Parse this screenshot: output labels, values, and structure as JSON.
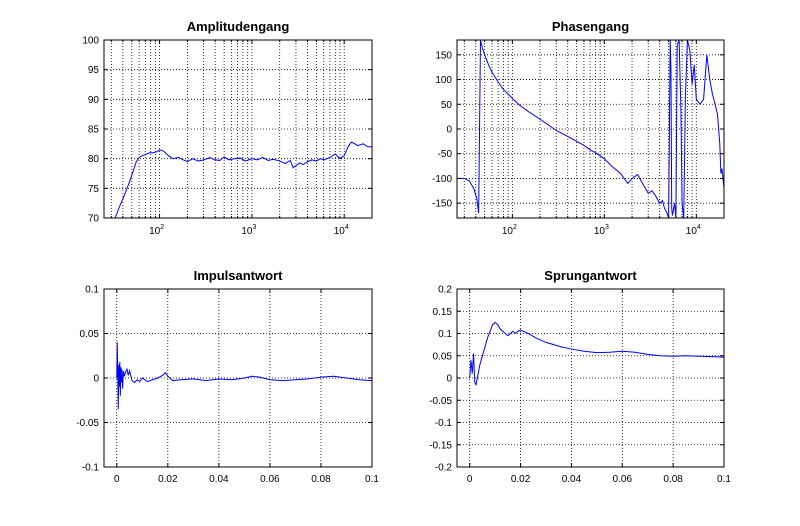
{
  "chart_data": [
    {
      "id": "amp",
      "type": "line",
      "title": "Amplitudengang",
      "xscale": "log",
      "xlim": [
        25,
        20000
      ],
      "ylim": [
        70,
        100
      ],
      "xticks": [
        {
          "value": 100,
          "base": "10",
          "exp": "2"
        },
        {
          "value": 1000,
          "base": "10",
          "exp": "3"
        },
        {
          "value": 10000,
          "base": "10",
          "exp": "4"
        }
      ],
      "yticks": [
        "70",
        "75",
        "80",
        "85",
        "90",
        "95",
        "100"
      ],
      "grid": true,
      "series": [
        {
          "color": "#0000ff",
          "x": [
            33,
            37,
            42,
            47,
            52,
            56,
            60,
            65,
            70,
            78,
            85,
            95,
            100,
            110,
            125,
            140,
            160,
            180,
            200,
            230,
            260,
            300,
            350,
            400,
            450,
            500,
            560,
            650,
            750,
            850,
            1000,
            1150,
            1300,
            1500,
            1700,
            2000,
            2300,
            2600,
            2800,
            3000,
            3300,
            3600,
            4000,
            4500,
            5000,
            5500,
            6000,
            7000,
            8000,
            9000,
            10000,
            11000,
            12000,
            13000,
            14000,
            16000,
            18000,
            20000
          ],
          "y": [
            70,
            72,
            74,
            76,
            78,
            79.5,
            80.2,
            80.5,
            80.7,
            81,
            81,
            81.2,
            81.5,
            81.3,
            80.5,
            80,
            80.2,
            79.8,
            79.5,
            80,
            79.6,
            79.8,
            80.2,
            79.8,
            79.7,
            80.3,
            79.8,
            80,
            80.1,
            79.6,
            80,
            79.8,
            80.2,
            79.7,
            79.9,
            79.6,
            79.2,
            79.7,
            78.5,
            78.8,
            79.3,
            79,
            79.5,
            79.8,
            79.6,
            80,
            79.8,
            80.2,
            80.8,
            80,
            80.5,
            82,
            82.8,
            82.5,
            82.2,
            82.5,
            82,
            82
          ]
        }
      ]
    },
    {
      "id": "phase",
      "type": "line",
      "title": "Phasengang",
      "xscale": "log",
      "xlim": [
        25,
        20000
      ],
      "ylim": [
        -180,
        180
      ],
      "xticks": [
        {
          "value": 100,
          "base": "10",
          "exp": "2"
        },
        {
          "value": 1000,
          "base": "10",
          "exp": "3"
        },
        {
          "value": 10000,
          "base": "10",
          "exp": "4"
        }
      ],
      "yticks": [
        "-150",
        "-100",
        "-50",
        "0",
        "50",
        "100",
        "150"
      ],
      "grid": true,
      "series": [
        {
          "color": "#0000ff",
          "x": [
            25,
            30,
            34,
            38,
            41,
            43,
            45,
            47,
            50,
            55,
            60,
            70,
            80,
            100,
            120,
            150,
            200,
            300,
            400,
            500,
            600,
            700,
            800,
            1000,
            1200,
            1500,
            1800,
            2000,
            2300,
            2600,
            3000,
            3300,
            3600,
            4000,
            4300,
            4500,
            4800,
            5000,
            5100,
            5200,
            5300,
            5400,
            5500,
            5800,
            6000,
            6200,
            6500,
            6800,
            7000,
            7300,
            7600,
            8000,
            8500,
            9000,
            9500,
            10000,
            11000,
            12000,
            13000,
            14000,
            15000,
            16000,
            17000,
            18000,
            18500,
            19000,
            20000
          ],
          "y": [
            -100,
            -100,
            -105,
            -120,
            -140,
            -170,
            180,
            165,
            150,
            130,
            115,
            95,
            80,
            62,
            48,
            35,
            20,
            -3,
            -15,
            -25,
            -33,
            -42,
            -48,
            -60,
            -75,
            -90,
            -110,
            -100,
            -92,
            -110,
            -130,
            -125,
            -135,
            -150,
            -145,
            -160,
            -170,
            -180,
            0,
            180,
            120,
            -160,
            -175,
            -150,
            -180,
            170,
            180,
            40,
            -150,
            -180,
            60,
            180,
            160,
            90,
            130,
            60,
            50,
            60,
            150,
            100,
            70,
            50,
            30,
            -30,
            -90,
            -80,
            -120
          ]
        }
      ]
    },
    {
      "id": "impulse",
      "type": "line",
      "title": "Impulsantwort",
      "xlim": [
        -0.005,
        0.1
      ],
      "ylim": [
        -0.1,
        0.1
      ],
      "xticks": [
        {
          "value": 0,
          "label": "0"
        },
        {
          "value": 0.02,
          "label": "0.02"
        },
        {
          "value": 0.04,
          "label": "0.04"
        },
        {
          "value": 0.06,
          "label": "0.06"
        },
        {
          "value": 0.08,
          "label": "0.08"
        },
        {
          "value": 0.1,
          "label": "0.1"
        }
      ],
      "yticks": [
        "-0.1",
        "-0.05",
        "0",
        "0.05",
        "0.1"
      ],
      "grid": true,
      "series": [
        {
          "color": "#0000ff",
          "x": [
            0,
            0.0002,
            0.0004,
            0.0006,
            0.0008,
            0.001,
            0.0012,
            0.0014,
            0.0016,
            0.0018,
            0.002,
            0.0023,
            0.0026,
            0.003,
            0.0035,
            0.004,
            0.0045,
            0.005,
            0.006,
            0.007,
            0.008,
            0.009,
            0.01,
            0.012,
            0.014,
            0.016,
            0.018,
            0.019,
            0.02,
            0.022,
            0.025,
            0.03,
            0.035,
            0.04,
            0.045,
            0.05,
            0.053,
            0.056,
            0.06,
            0.065,
            0.07,
            0.075,
            0.08,
            0.085,
            0.09,
            0.095,
            0.1
          ],
          "y": [
            0,
            0.04,
            0.005,
            -0.035,
            0.015,
            -0.01,
            0.018,
            -0.02,
            0.012,
            -0.005,
            0.01,
            -0.012,
            0.008,
            0.002,
            0.007,
            0.01,
            0.003,
            0.008,
            -0.003,
            -0.005,
            -0.002,
            -0.004,
            0.0,
            -0.004,
            -0.002,
            0.0,
            0.003,
            0.006,
            0.002,
            -0.003,
            -0.002,
            -0.001,
            -0.003,
            -0.001,
            -0.002,
            0.0,
            0.002,
            0.001,
            -0.002,
            -0.003,
            -0.002,
            -0.001,
            0.001,
            0.002,
            0.0,
            -0.002,
            -0.003
          ]
        }
      ]
    },
    {
      "id": "step",
      "type": "line",
      "title": "Sprungantwort",
      "xlim": [
        -0.005,
        0.1
      ],
      "ylim": [
        -0.2,
        0.2
      ],
      "xticks": [
        {
          "value": 0,
          "label": "0"
        },
        {
          "value": 0.02,
          "label": "0.02"
        },
        {
          "value": 0.04,
          "label": "0.04"
        },
        {
          "value": 0.06,
          "label": "0.06"
        },
        {
          "value": 0.08,
          "label": "0.08"
        },
        {
          "value": 0.1,
          "label": "0.1"
        }
      ],
      "yticks": [
        "-0.2",
        "-0.15",
        "-0.1",
        "-0.05",
        "0",
        "0.05",
        "0.1",
        "0.15",
        "0.2"
      ],
      "grid": true,
      "series": [
        {
          "color": "#0000ff",
          "x": [
            0,
            0.0005,
            0.001,
            0.0015,
            0.002,
            0.0025,
            0.003,
            0.004,
            0.005,
            0.006,
            0.007,
            0.008,
            0.009,
            0.01,
            0.011,
            0.012,
            0.013,
            0.014,
            0.015,
            0.016,
            0.017,
            0.018,
            0.019,
            0.02,
            0.021,
            0.022,
            0.024,
            0.026,
            0.028,
            0.03,
            0.033,
            0.036,
            0.04,
            0.045,
            0.05,
            0.055,
            0.06,
            0.065,
            0.07,
            0.075,
            0.08,
            0.085,
            0.09,
            0.095,
            0.1
          ],
          "y": [
            0,
            0.04,
            0.01,
            0.055,
            -0.01,
            -0.015,
            0.0,
            0.03,
            0.05,
            0.07,
            0.09,
            0.105,
            0.12,
            0.125,
            0.12,
            0.11,
            0.105,
            0.1,
            0.095,
            0.1,
            0.105,
            0.1,
            0.105,
            0.108,
            0.105,
            0.103,
            0.097,
            0.09,
            0.085,
            0.08,
            0.075,
            0.07,
            0.065,
            0.06,
            0.057,
            0.058,
            0.06,
            0.058,
            0.053,
            0.05,
            0.049,
            0.05,
            0.049,
            0.048,
            0.047
          ]
        }
      ]
    }
  ]
}
